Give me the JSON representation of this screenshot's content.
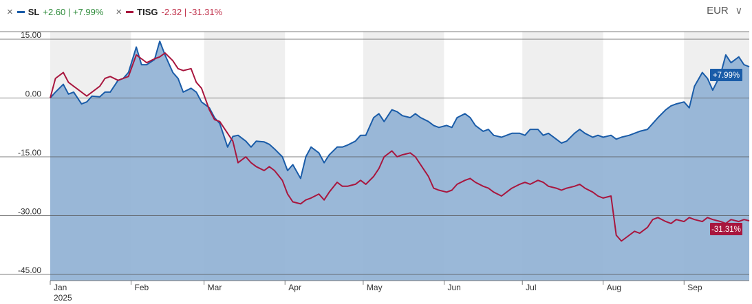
{
  "legend": {
    "items": [
      {
        "ticker": "SL",
        "change": "+2.60",
        "pct": "+7.99%",
        "color": "#1a5ca8"
      },
      {
        "ticker": "TISG",
        "change": "-2.32",
        "pct": "-31.31%",
        "color": "#a8163e"
      }
    ],
    "separator": "|"
  },
  "currency": {
    "label": "EUR"
  },
  "chart_data": {
    "type": "line",
    "x_labels": [
      "Jan",
      "Feb",
      "Mar",
      "Apr",
      "May",
      "Jun",
      "Jul",
      "Aug",
      "Sep"
    ],
    "year_label": "2025",
    "y_tick_labels": [
      "15.00",
      "0.00",
      "-15.00",
      "-30.00",
      "-45.00"
    ],
    "y_ticks": [
      15,
      0,
      -15,
      -30,
      -45
    ],
    "ylim": [
      -45,
      15
    ],
    "shading": "alternating months",
    "series": [
      {
        "name": "SL",
        "color": "#1a5ca8",
        "fill": "#8fb0d4",
        "end_label": "+7.99%",
        "points": [
          [
            "2025-01-01",
            0
          ],
          [
            "2025-01-03",
            1.5
          ],
          [
            "2025-01-06",
            3.5
          ],
          [
            "2025-01-08",
            1
          ],
          [
            "2025-01-10",
            1.5
          ],
          [
            "2025-01-13",
            -1.5
          ],
          [
            "2025-01-15",
            -1
          ],
          [
            "2025-01-17",
            0.5
          ],
          [
            "2025-01-20",
            0.3
          ],
          [
            "2025-01-22",
            1.5
          ],
          [
            "2025-01-24",
            1.5
          ],
          [
            "2025-01-27",
            4.5
          ],
          [
            "2025-01-29",
            5
          ],
          [
            "2025-01-31",
            6.5
          ],
          [
            "2025-02-03",
            13
          ],
          [
            "2025-02-05",
            8.5
          ],
          [
            "2025-02-07",
            8.5
          ],
          [
            "2025-02-10",
            9.8
          ],
          [
            "2025-02-12",
            14.5
          ],
          [
            "2025-02-14",
            11
          ],
          [
            "2025-02-17",
            6.5
          ],
          [
            "2025-02-19",
            5
          ],
          [
            "2025-02-21",
            1.5
          ],
          [
            "2025-02-24",
            2.5
          ],
          [
            "2025-02-26",
            1.5
          ],
          [
            "2025-02-28",
            -1
          ],
          [
            "2025-03-03",
            -2.5
          ],
          [
            "2025-03-05",
            -5
          ],
          [
            "2025-03-07",
            -6.5
          ],
          [
            "2025-03-10",
            -12.5
          ],
          [
            "2025-03-12",
            -9.8
          ],
          [
            "2025-03-14",
            -9.5
          ],
          [
            "2025-03-17",
            -11
          ],
          [
            "2025-03-19",
            -12.5
          ],
          [
            "2025-03-21",
            -11
          ],
          [
            "2025-03-24",
            -11.2
          ],
          [
            "2025-03-26",
            -11.8
          ],
          [
            "2025-03-28",
            -13
          ],
          [
            "2025-03-31",
            -15
          ],
          [
            "2025-04-02",
            -18.5
          ],
          [
            "2025-04-04",
            -17
          ],
          [
            "2025-04-07",
            -20.5
          ],
          [
            "2025-04-09",
            -15
          ],
          [
            "2025-04-11",
            -12.5
          ],
          [
            "2025-04-14",
            -14
          ],
          [
            "2025-04-16",
            -16.5
          ],
          [
            "2025-04-18",
            -14.5
          ],
          [
            "2025-04-21",
            -12.5
          ],
          [
            "2025-04-23",
            -12.5
          ],
          [
            "2025-04-25",
            -12
          ],
          [
            "2025-04-28",
            -11
          ],
          [
            "2025-04-30",
            -9.5
          ],
          [
            "2025-05-02",
            -9.5
          ],
          [
            "2025-05-05",
            -5
          ],
          [
            "2025-05-07",
            -4
          ],
          [
            "2025-05-09",
            -6
          ],
          [
            "2025-05-12",
            -3
          ],
          [
            "2025-05-14",
            -3.5
          ],
          [
            "2025-05-16",
            -4.5
          ],
          [
            "2025-05-19",
            -5
          ],
          [
            "2025-05-21",
            -4
          ],
          [
            "2025-05-23",
            -5
          ],
          [
            "2025-05-26",
            -6
          ],
          [
            "2025-05-28",
            -7
          ],
          [
            "2025-05-30",
            -7.5
          ],
          [
            "2025-06-02",
            -7
          ],
          [
            "2025-06-04",
            -7.5
          ],
          [
            "2025-06-06",
            -5
          ],
          [
            "2025-06-09",
            -4
          ],
          [
            "2025-06-11",
            -5
          ],
          [
            "2025-06-13",
            -7
          ],
          [
            "2025-06-16",
            -8.5
          ],
          [
            "2025-06-18",
            -8
          ],
          [
            "2025-06-20",
            -9.5
          ],
          [
            "2025-06-23",
            -10
          ],
          [
            "2025-06-25",
            -9.5
          ],
          [
            "2025-06-27",
            -9
          ],
          [
            "2025-06-30",
            -9
          ],
          [
            "2025-07-02",
            -9.5
          ],
          [
            "2025-07-04",
            -8
          ],
          [
            "2025-07-07",
            -8
          ],
          [
            "2025-07-09",
            -9.5
          ],
          [
            "2025-07-11",
            -9
          ],
          [
            "2025-07-14",
            -10.5
          ],
          [
            "2025-07-16",
            -11.5
          ],
          [
            "2025-07-18",
            -11
          ],
          [
            "2025-07-21",
            -9
          ],
          [
            "2025-07-23",
            -8
          ],
          [
            "2025-07-25",
            -9
          ],
          [
            "2025-07-28",
            -10
          ],
          [
            "2025-07-30",
            -9.5
          ],
          [
            "2025-08-01",
            -10
          ],
          [
            "2025-08-04",
            -9.5
          ],
          [
            "2025-08-06",
            -10.5
          ],
          [
            "2025-08-08",
            -10
          ],
          [
            "2025-08-11",
            -9.5
          ],
          [
            "2025-08-13",
            -9
          ],
          [
            "2025-08-15",
            -8.5
          ],
          [
            "2025-08-18",
            -8
          ],
          [
            "2025-08-20",
            -6.5
          ],
          [
            "2025-08-22",
            -5
          ],
          [
            "2025-08-25",
            -3
          ],
          [
            "2025-08-27",
            -2
          ],
          [
            "2025-08-29",
            -1.5
          ],
          [
            "2025-09-01",
            -1
          ],
          [
            "2025-09-03",
            -2.5
          ],
          [
            "2025-09-05",
            3
          ],
          [
            "2025-09-08",
            6.5
          ],
          [
            "2025-09-10",
            5
          ],
          [
            "2025-09-12",
            2
          ],
          [
            "2025-09-15",
            6
          ],
          [
            "2025-09-17",
            11
          ],
          [
            "2025-09-19",
            9
          ],
          [
            "2025-09-22",
            10.5
          ],
          [
            "2025-09-24",
            8.5
          ],
          [
            "2025-09-26",
            7.99
          ]
        ]
      },
      {
        "name": "TISG",
        "color": "#a8163e",
        "end_label": "-31.31%",
        "points": [
          [
            "2025-01-01",
            0
          ],
          [
            "2025-01-03",
            5
          ],
          [
            "2025-01-06",
            6.5
          ],
          [
            "2025-01-08",
            4
          ],
          [
            "2025-01-10",
            3
          ],
          [
            "2025-01-13",
            1.5
          ],
          [
            "2025-01-15",
            0.5
          ],
          [
            "2025-01-17",
            1.5
          ],
          [
            "2025-01-20",
            3
          ],
          [
            "2025-01-22",
            5
          ],
          [
            "2025-01-24",
            5.5
          ],
          [
            "2025-01-27",
            4.5
          ],
          [
            "2025-01-29",
            5
          ],
          [
            "2025-01-31",
            5.5
          ],
          [
            "2025-02-03",
            11
          ],
          [
            "2025-02-05",
            10
          ],
          [
            "2025-02-07",
            9
          ],
          [
            "2025-02-10",
            10
          ],
          [
            "2025-02-12",
            10.5
          ],
          [
            "2025-02-14",
            11.5
          ],
          [
            "2025-02-17",
            9.5
          ],
          [
            "2025-02-19",
            7.5
          ],
          [
            "2025-02-21",
            7
          ],
          [
            "2025-02-24",
            7.5
          ],
          [
            "2025-02-26",
            4
          ],
          [
            "2025-02-28",
            2.5
          ],
          [
            "2025-03-03",
            -3
          ],
          [
            "2025-03-05",
            -5.5
          ],
          [
            "2025-03-07",
            -6
          ],
          [
            "2025-03-10",
            -9
          ],
          [
            "2025-03-12",
            -11
          ],
          [
            "2025-03-14",
            -16.5
          ],
          [
            "2025-03-17",
            -15
          ],
          [
            "2025-03-19",
            -16.5
          ],
          [
            "2025-03-21",
            -17.5
          ],
          [
            "2025-03-24",
            -18.5
          ],
          [
            "2025-03-26",
            -17.5
          ],
          [
            "2025-03-28",
            -18.5
          ],
          [
            "2025-03-31",
            -21
          ],
          [
            "2025-04-02",
            -24.5
          ],
          [
            "2025-04-04",
            -26.5
          ],
          [
            "2025-04-07",
            -27
          ],
          [
            "2025-04-09",
            -26
          ],
          [
            "2025-04-11",
            -25.5
          ],
          [
            "2025-04-14",
            -24.5
          ],
          [
            "2025-04-16",
            -26
          ],
          [
            "2025-04-18",
            -24
          ],
          [
            "2025-04-21",
            -21.5
          ],
          [
            "2025-04-23",
            -22.5
          ],
          [
            "2025-04-25",
            -22.5
          ],
          [
            "2025-04-28",
            -22
          ],
          [
            "2025-04-30",
            -21
          ],
          [
            "2025-05-02",
            -22
          ],
          [
            "2025-05-05",
            -20
          ],
          [
            "2025-05-07",
            -18
          ],
          [
            "2025-05-09",
            -15
          ],
          [
            "2025-05-12",
            -13.5
          ],
          [
            "2025-05-14",
            -15
          ],
          [
            "2025-05-16",
            -14.5
          ],
          [
            "2025-05-19",
            -14
          ],
          [
            "2025-05-21",
            -15
          ],
          [
            "2025-05-23",
            -17
          ],
          [
            "2025-05-26",
            -20
          ],
          [
            "2025-05-28",
            -23
          ],
          [
            "2025-05-30",
            -23.5
          ],
          [
            "2025-06-02",
            -24
          ],
          [
            "2025-06-04",
            -23.5
          ],
          [
            "2025-06-06",
            -22
          ],
          [
            "2025-06-09",
            -21
          ],
          [
            "2025-06-11",
            -20.5
          ],
          [
            "2025-06-13",
            -21.5
          ],
          [
            "2025-06-16",
            -22.5
          ],
          [
            "2025-06-18",
            -23
          ],
          [
            "2025-06-20",
            -24
          ],
          [
            "2025-06-23",
            -25
          ],
          [
            "2025-06-25",
            -24
          ],
          [
            "2025-06-27",
            -23
          ],
          [
            "2025-06-30",
            -22
          ],
          [
            "2025-07-02",
            -21.5
          ],
          [
            "2025-07-04",
            -22
          ],
          [
            "2025-07-07",
            -21
          ],
          [
            "2025-07-09",
            -21.5
          ],
          [
            "2025-07-11",
            -22.5
          ],
          [
            "2025-07-14",
            -23
          ],
          [
            "2025-07-16",
            -23.5
          ],
          [
            "2025-07-18",
            -23
          ],
          [
            "2025-07-21",
            -22.5
          ],
          [
            "2025-07-23",
            -22
          ],
          [
            "2025-07-25",
            -23
          ],
          [
            "2025-07-28",
            -24
          ],
          [
            "2025-07-30",
            -25
          ],
          [
            "2025-08-01",
            -25.5
          ],
          [
            "2025-08-04",
            -25
          ],
          [
            "2025-08-06",
            -35
          ],
          [
            "2025-08-08",
            -36.5
          ],
          [
            "2025-08-11",
            -35
          ],
          [
            "2025-08-13",
            -34
          ],
          [
            "2025-08-15",
            -34.5
          ],
          [
            "2025-08-18",
            -33
          ],
          [
            "2025-08-20",
            -31
          ],
          [
            "2025-08-22",
            -30.5
          ],
          [
            "2025-08-25",
            -31.5
          ],
          [
            "2025-08-27",
            -32
          ],
          [
            "2025-08-29",
            -31
          ],
          [
            "2025-09-01",
            -31.5
          ],
          [
            "2025-09-03",
            -30.5
          ],
          [
            "2025-09-05",
            -31
          ],
          [
            "2025-09-08",
            -31.5
          ],
          [
            "2025-09-10",
            -30.5
          ],
          [
            "2025-09-12",
            -31
          ],
          [
            "2025-09-15",
            -31.5
          ],
          [
            "2025-09-17",
            -32
          ],
          [
            "2025-09-19",
            -31
          ],
          [
            "2025-09-22",
            -31.5
          ],
          [
            "2025-09-24",
            -31
          ],
          [
            "2025-09-26",
            -31.31
          ]
        ]
      }
    ]
  }
}
